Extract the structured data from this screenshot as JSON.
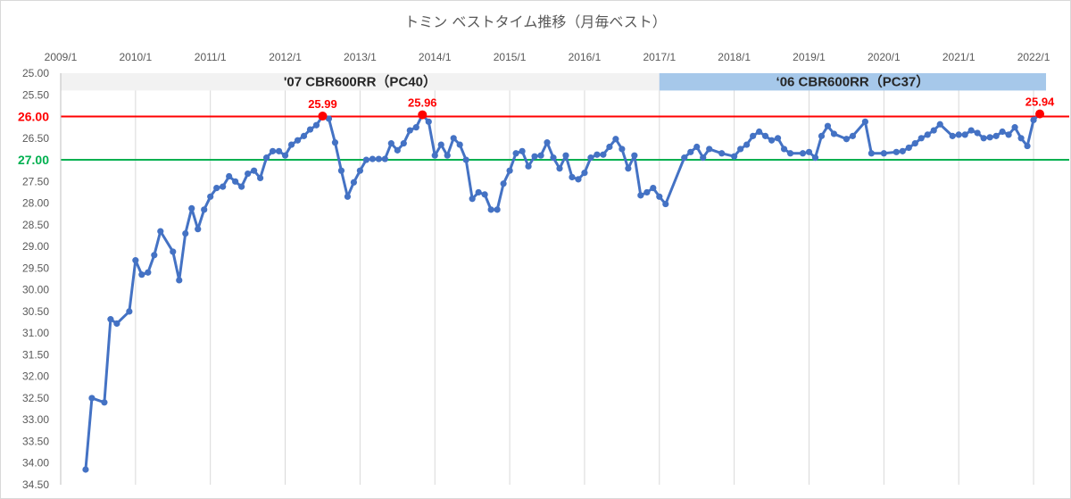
{
  "chart_data": {
    "type": "line",
    "title": "トミン ベストタイム推移（月毎ベスト）",
    "xlabel": "",
    "ylabel": "",
    "x_tick_labels": [
      "2009/1",
      "2010/1",
      "2011/1",
      "2012/1",
      "2013/1",
      "2014/1",
      "2015/1",
      "2016/1",
      "2017/1",
      "2018/1",
      "2019/1",
      "2020/1",
      "2021/1",
      "2022/1"
    ],
    "y_tick_labels": [
      "25.00",
      "25.50",
      "26.00",
      "26.50",
      "27.00",
      "27.50",
      "28.00",
      "28.50",
      "29.00",
      "29.50",
      "30.00",
      "30.50",
      "31.00",
      "31.50",
      "32.00",
      "32.50",
      "33.00",
      "33.50",
      "34.00",
      "34.50"
    ],
    "ylim": [
      25.0,
      34.5
    ],
    "y_reversed": true,
    "xlim": [
      "2009-01",
      "2022-05"
    ],
    "grid": "vertical",
    "series": [
      {
        "color": "#4472c4",
        "points": [
          [
            "2009-05",
            34.15
          ],
          [
            "2009-06",
            32.5
          ],
          [
            "2009-08",
            32.6
          ],
          [
            "2009-09",
            30.68
          ],
          [
            "2009-10",
            30.78
          ],
          [
            "2009-12",
            30.5
          ],
          [
            "2010-01",
            29.32
          ],
          [
            "2010-02",
            29.65
          ],
          [
            "2010-03",
            29.6
          ],
          [
            "2010-04",
            29.2
          ],
          [
            "2010-05",
            28.65
          ],
          [
            "2010-07",
            29.12
          ],
          [
            "2010-08",
            29.78
          ],
          [
            "2010-09",
            28.7
          ],
          [
            "2010-10",
            28.12
          ],
          [
            "2010-11",
            28.6
          ],
          [
            "2010-12",
            28.15
          ],
          [
            "2011-01",
            27.85
          ],
          [
            "2011-02",
            27.65
          ],
          [
            "2011-03",
            27.62
          ],
          [
            "2011-04",
            27.38
          ],
          [
            "2011-05",
            27.5
          ],
          [
            "2011-06",
            27.62
          ],
          [
            "2011-07",
            27.32
          ],
          [
            "2011-08",
            27.25
          ],
          [
            "2011-09",
            27.42
          ],
          [
            "2011-10",
            26.95
          ],
          [
            "2011-11",
            26.8
          ],
          [
            "2011-12",
            26.8
          ],
          [
            "2012-01",
            26.9
          ],
          [
            "2012-02",
            26.65
          ],
          [
            "2012-03",
            26.55
          ],
          [
            "2012-04",
            26.45
          ],
          [
            "2012-05",
            26.3
          ],
          [
            "2012-06",
            26.2
          ],
          [
            "2012-07",
            25.99
          ],
          [
            "2012-08",
            26.05
          ],
          [
            "2012-09",
            26.6
          ],
          [
            "2012-10",
            27.25
          ],
          [
            "2012-11",
            27.85
          ],
          [
            "2012-12",
            27.52
          ],
          [
            "2013-01",
            27.25
          ],
          [
            "2013-02",
            27.0
          ],
          [
            "2013-03",
            26.98
          ],
          [
            "2013-04",
            26.98
          ],
          [
            "2013-05",
            26.98
          ],
          [
            "2013-06",
            26.62
          ],
          [
            "2013-07",
            26.78
          ],
          [
            "2013-08",
            26.62
          ],
          [
            "2013-09",
            26.32
          ],
          [
            "2013-10",
            26.25
          ],
          [
            "2013-11",
            25.96
          ],
          [
            "2013-12",
            26.12
          ],
          [
            "2014-01",
            26.9
          ],
          [
            "2014-02",
            26.65
          ],
          [
            "2014-03",
            26.9
          ],
          [
            "2014-04",
            26.5
          ],
          [
            "2014-05",
            26.65
          ],
          [
            "2014-06",
            27.0
          ],
          [
            "2014-07",
            27.9
          ],
          [
            "2014-08",
            27.75
          ],
          [
            "2014-09",
            27.8
          ],
          [
            "2014-10",
            28.15
          ],
          [
            "2014-11",
            28.15
          ],
          [
            "2014-12",
            27.55
          ],
          [
            "2015-01",
            27.25
          ],
          [
            "2015-02",
            26.85
          ],
          [
            "2015-03",
            26.8
          ],
          [
            "2015-04",
            27.15
          ],
          [
            "2015-05",
            26.92
          ],
          [
            "2015-06",
            26.9
          ],
          [
            "2015-07",
            26.6
          ],
          [
            "2015-08",
            26.95
          ],
          [
            "2015-09",
            27.2
          ],
          [
            "2015-10",
            26.9
          ],
          [
            "2015-11",
            27.4
          ],
          [
            "2015-12",
            27.45
          ],
          [
            "2016-01",
            27.3
          ],
          [
            "2016-02",
            26.95
          ],
          [
            "2016-03",
            26.88
          ],
          [
            "2016-04",
            26.88
          ],
          [
            "2016-05",
            26.7
          ],
          [
            "2016-06",
            26.52
          ],
          [
            "2016-07",
            26.75
          ],
          [
            "2016-08",
            27.2
          ],
          [
            "2016-09",
            26.9
          ],
          [
            "2016-10",
            27.82
          ],
          [
            "2016-11",
            27.75
          ],
          [
            "2016-12",
            27.65
          ],
          [
            "2017-01",
            27.85
          ],
          [
            "2017-02",
            28.02
          ],
          [
            "2017-05",
            26.95
          ],
          [
            "2017-06",
            26.82
          ],
          [
            "2017-07",
            26.7
          ],
          [
            "2017-08",
            26.95
          ],
          [
            "2017-09",
            26.75
          ],
          [
            "2017-11",
            26.85
          ],
          [
            "2018-01",
            26.92
          ],
          [
            "2018-02",
            26.75
          ],
          [
            "2018-03",
            26.65
          ],
          [
            "2018-04",
            26.45
          ],
          [
            "2018-05",
            26.35
          ],
          [
            "2018-06",
            26.45
          ],
          [
            "2018-07",
            26.55
          ],
          [
            "2018-08",
            26.5
          ],
          [
            "2018-09",
            26.75
          ],
          [
            "2018-10",
            26.85
          ],
          [
            "2018-12",
            26.85
          ],
          [
            "2019-01",
            26.82
          ],
          [
            "2019-02",
            26.95
          ],
          [
            "2019-03",
            26.45
          ],
          [
            "2019-04",
            26.22
          ],
          [
            "2019-05",
            26.4
          ],
          [
            "2019-07",
            26.52
          ],
          [
            "2019-08",
            26.45
          ],
          [
            "2019-10",
            26.12
          ],
          [
            "2019-11",
            26.85
          ],
          [
            "2020-01",
            26.85
          ],
          [
            "2020-03",
            26.82
          ],
          [
            "2020-04",
            26.8
          ],
          [
            "2020-05",
            26.72
          ],
          [
            "2020-06",
            26.62
          ],
          [
            "2020-07",
            26.5
          ],
          [
            "2020-08",
            26.42
          ],
          [
            "2020-09",
            26.32
          ],
          [
            "2020-10",
            26.18
          ],
          [
            "2020-12",
            26.45
          ],
          [
            "2021-01",
            26.42
          ],
          [
            "2021-02",
            26.42
          ],
          [
            "2021-03",
            26.32
          ],
          [
            "2021-04",
            26.38
          ],
          [
            "2021-05",
            26.5
          ],
          [
            "2021-06",
            26.48
          ],
          [
            "2021-07",
            26.45
          ],
          [
            "2021-08",
            26.35
          ],
          [
            "2021-09",
            26.42
          ],
          [
            "2021-10",
            26.25
          ],
          [
            "2021-11",
            26.5
          ],
          [
            "2021-12",
            26.68
          ],
          [
            "2022-01",
            26.08
          ],
          [
            "2022-02",
            25.94
          ]
        ]
      }
    ],
    "reference_lines": [
      {
        "label": "26.00",
        "y": 26.0,
        "color": "#ff0000"
      },
      {
        "label": "27.00",
        "y": 27.0,
        "color": "#00b050"
      }
    ],
    "bands": [
      {
        "label": "'07 CBR600RR（PC40）",
        "from": "2009-01",
        "to": "2017-01",
        "color": "#f2f2f2"
      },
      {
        "label": "‘06 CBR600RR（PC37）",
        "from": "2017-01",
        "to": "2022-03",
        "color": "#a6c8ea"
      }
    ],
    "highlights": [
      {
        "x": "2012-07",
        "y": 25.99,
        "label": "25.99"
      },
      {
        "x": "2013-11",
        "y": 25.96,
        "label": "25.96"
      },
      {
        "x": "2022-02",
        "y": 25.94,
        "label": "25.94"
      }
    ]
  }
}
